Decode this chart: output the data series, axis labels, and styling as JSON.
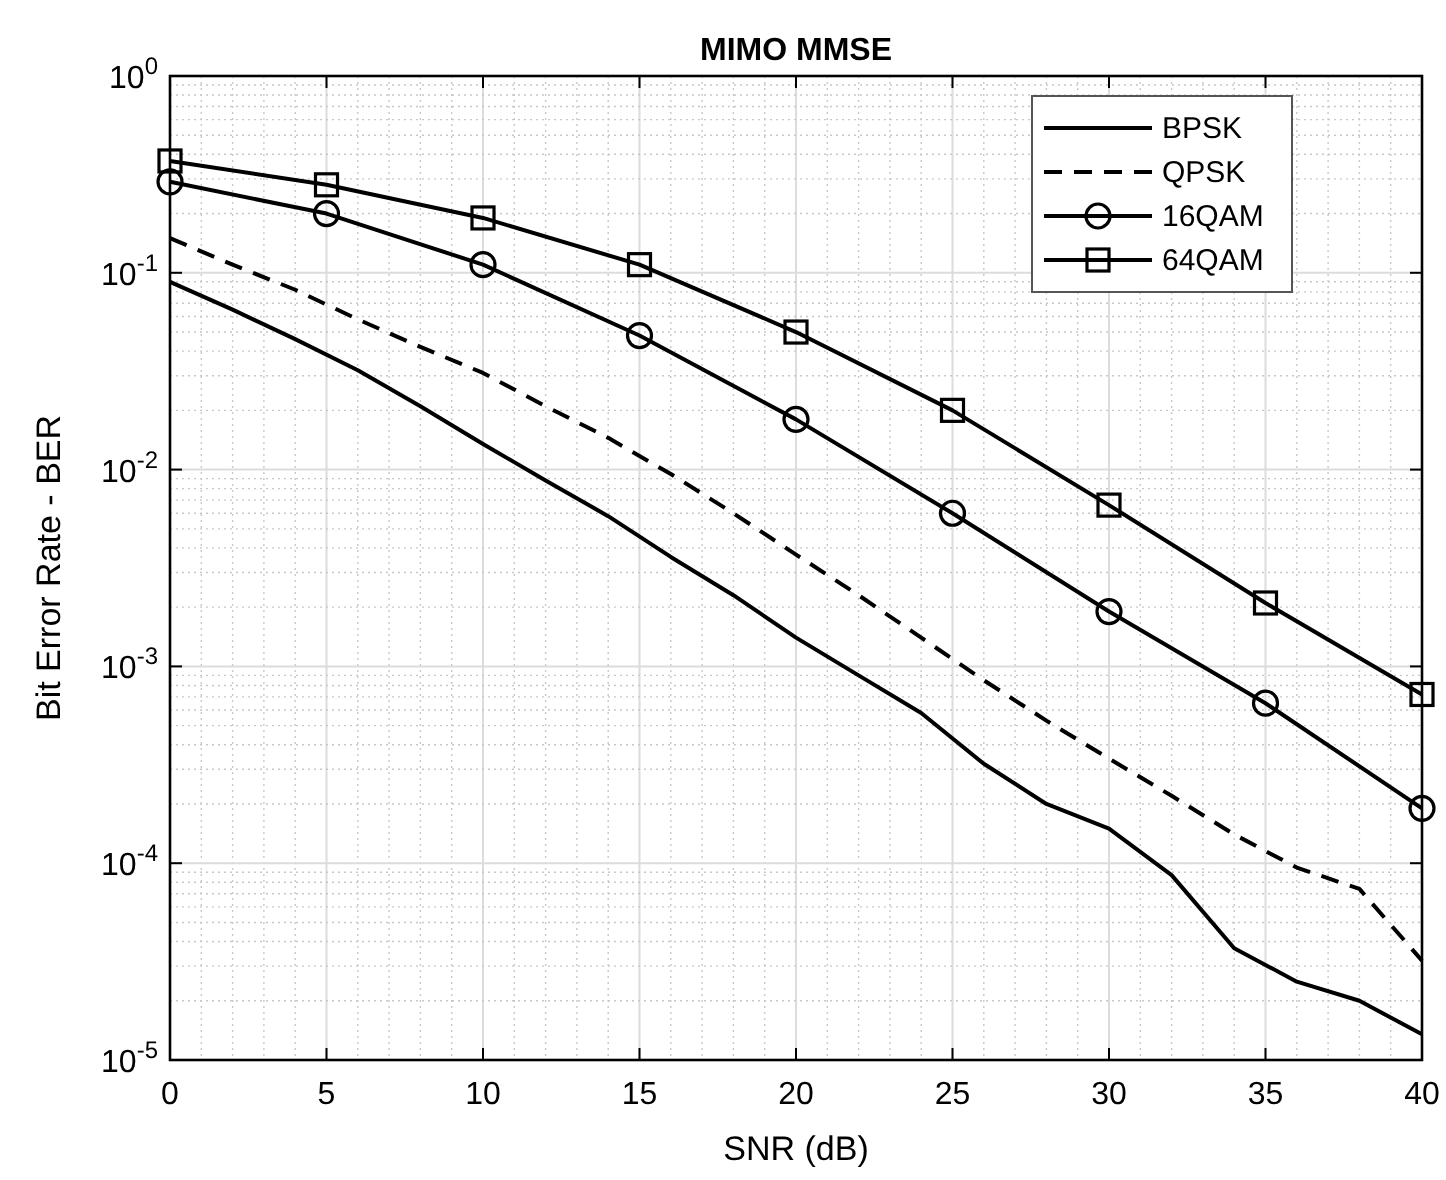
{
  "chart_data": {
    "type": "line",
    "title": "MIMO MMSE",
    "xlabel": "SNR (dB)",
    "ylabel": "Bit Error Rate - BER",
    "log": true,
    "grid": true,
    "legend": "top right",
    "xlim": [
      0,
      40
    ],
    "xticks": [
      0,
      5,
      10,
      15,
      20,
      25,
      30,
      35,
      40
    ],
    "ylim": [
      1e-05,
      1
    ],
    "yticks": [
      {
        "value": 1e-05,
        "label": "10$^{-5}$"
      },
      {
        "value": 0.0001,
        "label": "10$^{-4}$"
      },
      {
        "value": 0.001,
        "label": "10$^{-3}$"
      },
      {
        "value": 0.01,
        "label": "10$^{-2}$"
      },
      {
        "value": 0.1,
        "label": "10$^{-1}$"
      },
      {
        "value": 1,
        "label": "10$^{0}$"
      }
    ],
    "series": [
      {
        "name": "BPSK",
        "color": "#000000",
        "line_style": "solid",
        "marker": "none",
        "x": [
          0,
          2,
          4,
          6,
          8,
          10,
          12,
          14,
          16,
          18,
          20,
          22,
          24,
          26,
          28,
          30,
          32,
          34,
          36,
          38,
          40
        ],
        "values": [
          0.09,
          0.065,
          0.046,
          0.032,
          0.021,
          0.0135,
          0.0088,
          0.0058,
          0.0036,
          0.0023,
          0.0014,
          0.0009,
          0.00058,
          0.00032,
          0.0002,
          0.00015,
          8.7e-05,
          3.7e-05,
          2.5e-05,
          2e-05,
          1.35e-05
        ]
      },
      {
        "name": "QPSK",
        "color": "#000000",
        "line_style": "dashed",
        "marker": "none",
        "x": [
          0,
          2,
          4,
          6,
          8,
          10,
          12,
          14,
          16,
          18,
          20,
          22,
          24,
          26,
          28,
          30,
          32,
          34,
          36,
          38,
          40
        ],
        "values": [
          0.15,
          0.11,
          0.082,
          0.058,
          0.042,
          0.031,
          0.021,
          0.0145,
          0.0095,
          0.006,
          0.0037,
          0.0023,
          0.0014,
          0.00085,
          0.00053,
          0.00034,
          0.00022,
          0.00014,
          9.5e-05,
          7.4e-05,
          3.2e-05
        ]
      },
      {
        "name": "16QAM",
        "color": "#000000",
        "line_style": "solid",
        "marker": "circle",
        "x": [
          0,
          5,
          10,
          15,
          20,
          25,
          30,
          35,
          40
        ],
        "values": [
          0.29,
          0.2,
          0.11,
          0.048,
          0.018,
          0.006,
          0.0019,
          0.00065,
          0.00019
        ]
      },
      {
        "name": "64QAM",
        "color": "#000000",
        "line_style": "solid",
        "marker": "square",
        "x": [
          0,
          5,
          10,
          15,
          20,
          25,
          30,
          35,
          40
        ],
        "values": [
          0.37,
          0.28,
          0.19,
          0.11,
          0.05,
          0.02,
          0.0066,
          0.0021,
          0.00072
        ]
      }
    ]
  }
}
